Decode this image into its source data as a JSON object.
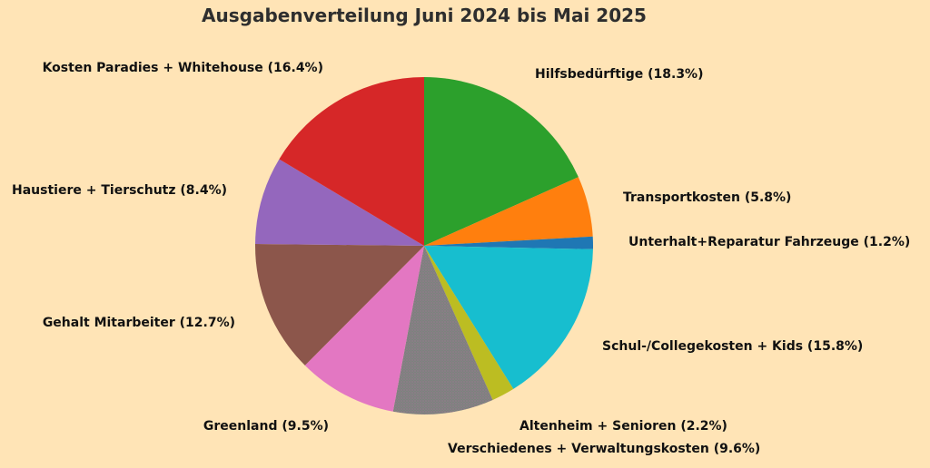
{
  "background_color": "#ffe4b6",
  "title_color": "#2e2e2e",
  "label_color": "#111111",
  "chart_data": {
    "type": "pie",
    "title": "Ausgabenverteilung Juni 2024 bis Mai 2025",
    "start_angle_deg": 90,
    "direction": "clockwise",
    "legend_position": "none",
    "label_placement": "outside",
    "slices": [
      {
        "label": "Hilfsbedürftige",
        "value": 18.3,
        "display": "Hilfsbedürftige (18.3%)",
        "color": "#2ca02c"
      },
      {
        "label": "Transportkosten",
        "value": 5.8,
        "display": "Transportkosten (5.8%)",
        "color": "#ff7f0e"
      },
      {
        "label": "Unterhalt+Reparatur Fahrzeuge",
        "value": 1.2,
        "display": "Unterhalt+Reparatur Fahrzeuge (1.2%)",
        "color": "#1f77b4"
      },
      {
        "label": "Schul-/Collegekosten + Kids",
        "value": 15.8,
        "display": "Schul-/Collegekosten + Kids (15.8%)",
        "color": "#17becf"
      },
      {
        "label": "Altenheim + Senioren",
        "value": 2.2,
        "display": "Altenheim + Senioren (2.2%)",
        "color": "#bcbd22"
      },
      {
        "label": "Verschiedenes + Verwaltungskosten",
        "value": 9.6,
        "display": "Verschiedenes + Verwaltungskosten (9.6%)",
        "color": "#7f7f7f",
        "pattern": "pink-speckle"
      },
      {
        "label": "Greenland",
        "value": 9.5,
        "display": "Greenland (9.5%)",
        "color": "#e377c2"
      },
      {
        "label": "Gehalt Mitarbeiter",
        "value": 12.7,
        "display": "Gehalt Mitarbeiter (12.7%)",
        "color": "#8c564b"
      },
      {
        "label": "Haustiere + Tierschutz",
        "value": 8.4,
        "display": "Haustiere + Tierschutz (8.4%)",
        "color": "#9467bd"
      },
      {
        "label": "Kosten Paradies + Whitehouse",
        "value": 16.4,
        "display": "Kosten Paradies + Whitehouse (16.4%)",
        "color": "#d62728"
      }
    ]
  }
}
